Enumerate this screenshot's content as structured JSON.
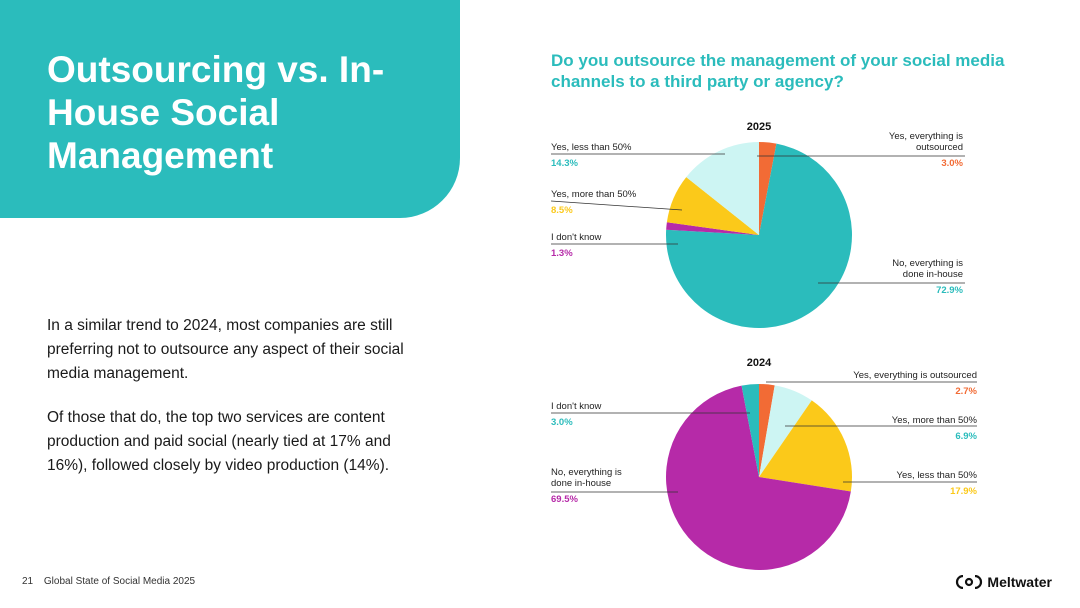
{
  "title": "Outsourcing vs. In-House Social Management",
  "body": {
    "paragraph_1": "In a similar trend to 2024, most companies are still preferring not to outsource any aspect of their social media management.",
    "paragraph_2": "Of those that do, the top two services are content production and paid social (nearly tied at 17% and 16%), followed closely by video production (14%)."
  },
  "question": "Do you outsource the management of your social media channels to a third party or agency?",
  "colors": {
    "teal": "#2bbcbc",
    "orange": "#f26b35",
    "light_cyan": "#cdf5f3",
    "yellow": "#fbc91a",
    "magenta": "#b62aa8"
  },
  "chart_data": [
    {
      "type": "pie",
      "title": "2025",
      "slices": [
        {
          "label": "Yes, everything is outsourced",
          "value": 3.0,
          "display": "3.0%",
          "color": "#f26b35"
        },
        {
          "label": "No, everything is done in-house",
          "value": 72.9,
          "display": "72.9%",
          "color": "#2bbcbc"
        },
        {
          "label": "I don't know",
          "value": 1.3,
          "display": "1.3%",
          "color": "#b62aa8"
        },
        {
          "label": "Yes, more than 50%",
          "value": 8.5,
          "display": "8.5%",
          "color": "#fbc91a"
        },
        {
          "label": "Yes, less than 50%",
          "value": 14.3,
          "display": "14.3%",
          "color": "#cdf5f3"
        }
      ]
    },
    {
      "type": "pie",
      "title": "2024",
      "slices": [
        {
          "label": "Yes, everything is outsourced",
          "value": 2.7,
          "display": "2.7%",
          "color": "#f26b35"
        },
        {
          "label": "Yes, more than 50%",
          "value": 6.9,
          "display": "6.9%",
          "color": "#cdf5f3"
        },
        {
          "label": "Yes, less than 50%",
          "value": 17.9,
          "display": "17.9%",
          "color": "#fbc91a"
        },
        {
          "label": "No, everything is done in-house",
          "value": 69.5,
          "display": "69.5%",
          "color": "#b62aa8"
        },
        {
          "label": "I don't know",
          "value": 3.0,
          "display": "3.0%",
          "color": "#2bbcbc"
        }
      ]
    }
  ],
  "footer": {
    "page_number": "21",
    "report_name": "Global State of Social Media 2025",
    "brand": "Meltwater"
  }
}
